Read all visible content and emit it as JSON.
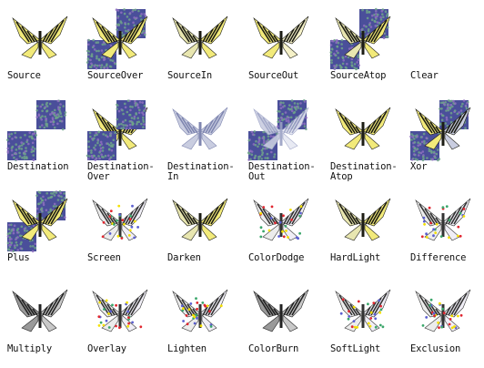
{
  "modes": [
    {
      "id": "source",
      "label": "Source"
    },
    {
      "id": "source-over",
      "label": "SourceOver"
    },
    {
      "id": "source-in",
      "label": "SourceIn"
    },
    {
      "id": "source-out",
      "label": "SourceOut"
    },
    {
      "id": "source-atop",
      "label": "SourceAtop"
    },
    {
      "id": "clear",
      "label": "Clear"
    },
    {
      "id": "destination",
      "label": "Destination"
    },
    {
      "id": "destination-over",
      "label": "Destination-\nOver"
    },
    {
      "id": "destination-in",
      "label": "Destination-\nIn"
    },
    {
      "id": "destination-out",
      "label": "Destination-\nOut"
    },
    {
      "id": "destination-atop",
      "label": "Destination-\nAtop"
    },
    {
      "id": "xor",
      "label": "Xor"
    },
    {
      "id": "plus",
      "label": "Plus"
    },
    {
      "id": "screen",
      "label": "Screen"
    },
    {
      "id": "darken",
      "label": "Darken"
    },
    {
      "id": "color-dodge",
      "label": "ColorDodge"
    },
    {
      "id": "hard-light",
      "label": "HardLight"
    },
    {
      "id": "difference",
      "label": "Difference"
    },
    {
      "id": "multiply",
      "label": "Multiply"
    },
    {
      "id": "overlay",
      "label": "Overlay"
    },
    {
      "id": "lighten",
      "label": "Lighten"
    },
    {
      "id": "color-burn",
      "label": "ColorBurn"
    },
    {
      "id": "soft-light",
      "label": "SoftLight"
    },
    {
      "id": "exclusion",
      "label": "Exclusion"
    }
  ],
  "colors": {
    "texture_base": "#4a4f9a",
    "texture_dots": "#6fa38a",
    "wing_yellow": "#f2ea7a",
    "wing_stripe": "#1c1c14",
    "wing_faded": "#c9cde0",
    "accent_red": "#e0262f",
    "accent_yellow": "#f4e000"
  }
}
